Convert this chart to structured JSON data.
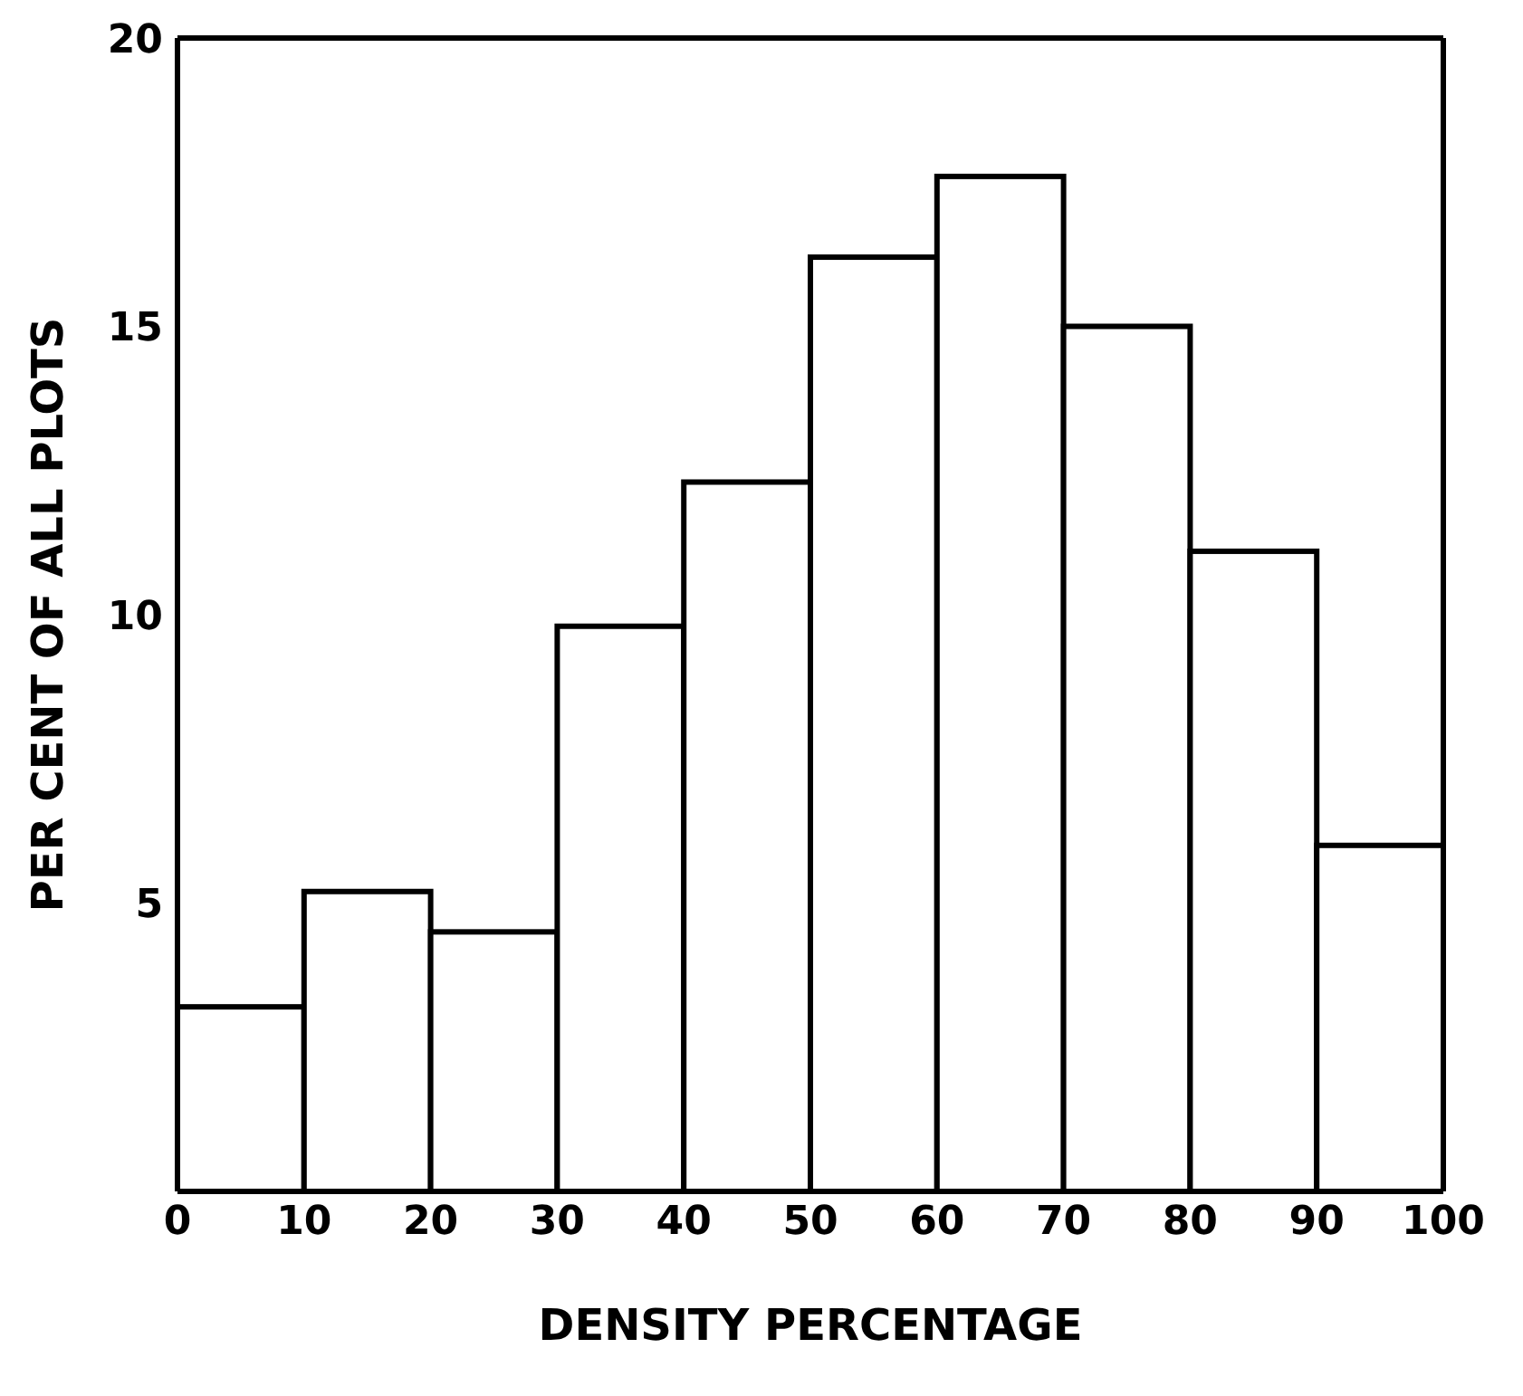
{
  "chart_data": {
    "type": "histogram",
    "xlabel": "DENSITY PERCENTAGE",
    "ylabel": "PER CENT OF ALL PLOTS",
    "bins": [
      0,
      10,
      20,
      30,
      40,
      50,
      60,
      70,
      80,
      90,
      100
    ],
    "values": [
      3.2,
      5.2,
      4.5,
      9.8,
      12.3,
      16.2,
      17.6,
      15.0,
      11.1,
      6.0
    ],
    "color": "#ffffff",
    "xlim": [
      0,
      100
    ],
    "xticks": [
      0,
      10,
      20,
      30,
      40,
      50,
      60,
      70,
      80,
      90,
      100
    ],
    "ylim": [
      0,
      20
    ],
    "yticks": [
      5,
      10,
      15,
      20
    ]
  }
}
